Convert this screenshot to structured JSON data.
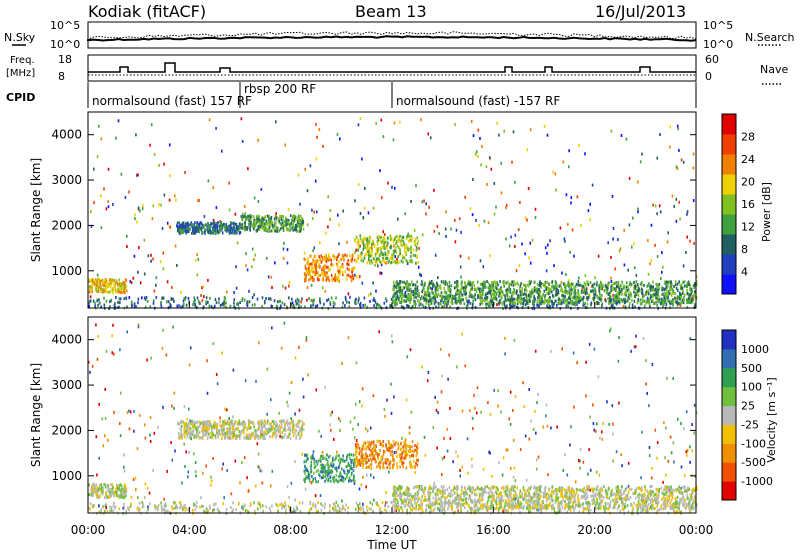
{
  "header": {
    "station": "Kodiak (fitACF)",
    "beam": "Beam 13",
    "date": "16/Jul/2013"
  },
  "noise_panel": {
    "left_label": "N.Sky",
    "right_label": "N.Search",
    "left_ticks": [
      "10^5",
      "10^0"
    ],
    "right_ticks": [
      "10^5",
      "10^0"
    ]
  },
  "freq_panel": {
    "left_label_1": "Freq.",
    "left_label_2": "[MHz]",
    "left_ticks": [
      "18",
      "8"
    ],
    "right_label": "Nave",
    "right_ticks": [
      "60",
      "0"
    ]
  },
  "cpid": {
    "label": "CPID",
    "segments": [
      {
        "label": "normalsound (fast) 157 RF",
        "start_hour": 0,
        "end_hour": 6
      },
      {
        "label": "rbsp 200 RF",
        "start_hour": 6,
        "end_hour": 12
      },
      {
        "label": "normalsound (fast) -157 RF",
        "start_hour": 12,
        "end_hour": 24
      }
    ]
  },
  "x_axis": {
    "label": "Time UT",
    "ticks": [
      "00:00",
      "04:00",
      "08:00",
      "12:00",
      "16:00",
      "20:00",
      "00:00"
    ]
  },
  "chart_data": [
    {
      "type": "heatmap",
      "title": "",
      "xlabel": "Time UT",
      "ylabel": "Slant Range [km]",
      "xlim": [
        0,
        24
      ],
      "ylim": [
        180,
        4500
      ],
      "yticks": [
        "4000",
        "3000",
        "2000",
        "1000"
      ],
      "colorbar": {
        "label": "Power [dB]",
        "range": [
          0,
          32
        ],
        "ticks": [
          "28",
          "24",
          "20",
          "16",
          "12",
          "8",
          "4"
        ],
        "colors": [
          "#1010ff",
          "#2040c0",
          "#206060",
          "#40a040",
          "#80c020",
          "#f0d000",
          "#f08000",
          "#f04000",
          "#e00000"
        ]
      },
      "features": [
        {
          "start_hour": 0.0,
          "end_hour": 1.5,
          "range_min": 550,
          "range_max": 850,
          "level": 20
        },
        {
          "start_hour": 3.5,
          "end_hour": 6.0,
          "range_min": 1850,
          "range_max": 2100,
          "level": 8
        },
        {
          "start_hour": 6.0,
          "end_hour": 8.5,
          "range_min": 1900,
          "range_max": 2250,
          "level": 10
        },
        {
          "start_hour": 8.5,
          "end_hour": 10.5,
          "range_min": 800,
          "range_max": 1400,
          "level": 24
        },
        {
          "start_hour": 10.5,
          "end_hour": 13.0,
          "range_min": 1200,
          "range_max": 1800,
          "level": 16
        },
        {
          "start_hour": 12.0,
          "end_hour": 24.0,
          "range_min": 300,
          "range_max": 800,
          "level": 12
        }
      ]
    },
    {
      "type": "heatmap",
      "title": "",
      "xlabel": "Time UT",
      "ylabel": "Slant Range [km]",
      "xlim": [
        0,
        24
      ],
      "ylim": [
        180,
        4500
      ],
      "yticks": [
        "4000",
        "3000",
        "2000",
        "1000"
      ],
      "colorbar": {
        "label": "Velocity [m s⁻¹]",
        "range": [
          -1200,
          1200
        ],
        "ticks": [
          "1000",
          "500",
          "100",
          "25",
          "-25",
          "-100",
          "-500",
          "-1000"
        ],
        "colors": [
          "#2030c0",
          "#3070b0",
          "#30a050",
          "#70c040",
          "#b8b8b8",
          "#f0c000",
          "#f09000",
          "#f05000",
          "#e00000"
        ]
      },
      "features": [
        {
          "start_hour": 0.0,
          "end_hour": 1.5,
          "range_min": 550,
          "range_max": 850,
          "velocity": 0
        },
        {
          "start_hour": 3.5,
          "end_hour": 8.5,
          "range_min": 1850,
          "range_max": 2250,
          "velocity": 0
        },
        {
          "start_hour": 8.5,
          "end_hour": 10.5,
          "range_min": 900,
          "range_max": 1500,
          "velocity": 200
        },
        {
          "start_hour": 10.5,
          "end_hour": 13.0,
          "range_min": 1200,
          "range_max": 1800,
          "velocity": -300
        },
        {
          "start_hour": 12.0,
          "end_hour": 24.0,
          "range_min": 300,
          "range_max": 800,
          "velocity": 0
        }
      ]
    }
  ]
}
